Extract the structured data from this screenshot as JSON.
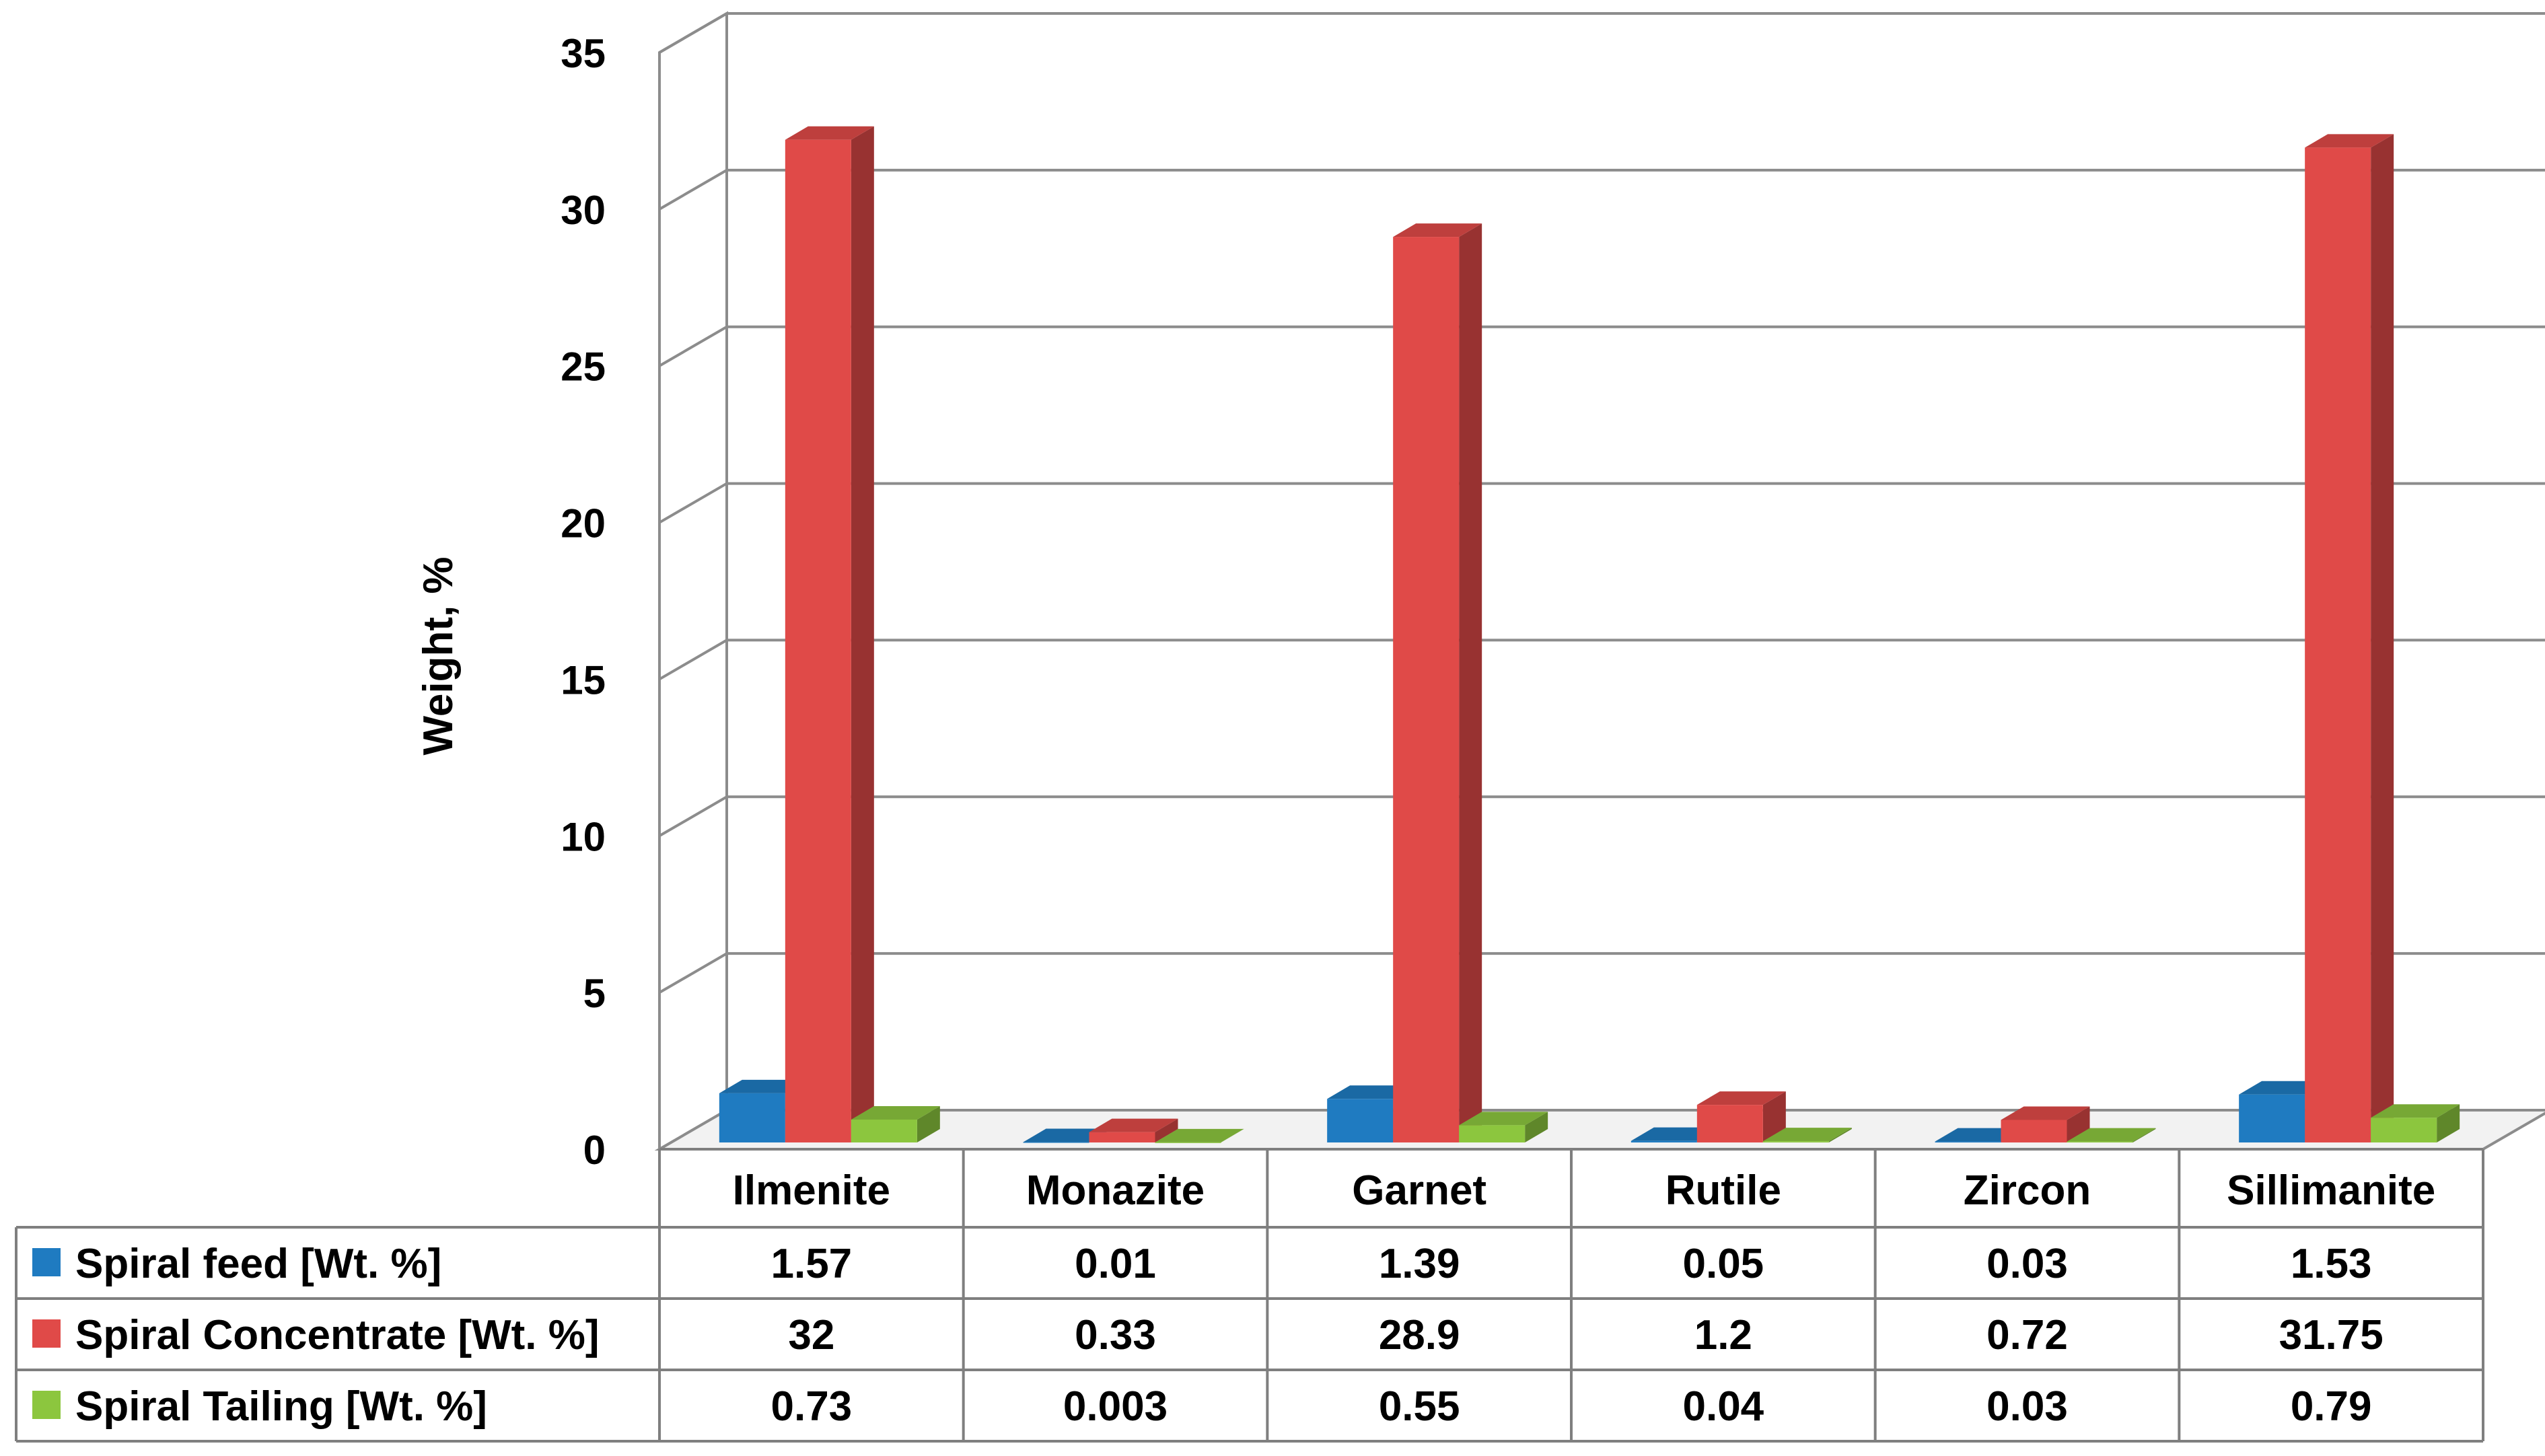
{
  "chart_data": {
    "type": "bar",
    "title": "",
    "xlabel": "",
    "ylabel": "Weight, %",
    "ylim": [
      0,
      35
    ],
    "yticks": [
      0,
      5,
      10,
      15,
      20,
      25,
      30,
      35
    ],
    "grid": true,
    "legend": "data-table-left",
    "categories": [
      "Ilmenite",
      "Monazite",
      "Garnet",
      "Rutile",
      "Zircon",
      "Sillimanite"
    ],
    "series": [
      {
        "name": "Spiral  feed [Wt. %]",
        "color": "#1f7bc1",
        "values": [
          1.57,
          0.01,
          1.39,
          0.05,
          0.03,
          1.53
        ],
        "labels": [
          "1.57",
          "0.01",
          "1.39",
          "0.05",
          "0.03",
          "1.53"
        ]
      },
      {
        "name": "Spiral Concentrate [Wt. %]",
        "color": "#e04a48",
        "values": [
          32,
          0.33,
          28.9,
          1.2,
          0.72,
          31.75
        ],
        "labels": [
          "32",
          "0.33",
          "28.9",
          "1.2",
          "0.72",
          "31.75"
        ]
      },
      {
        "name": "Spiral Tailing [Wt. %]",
        "color": "#8cc63e",
        "values": [
          0.73,
          0.003,
          0.55,
          0.04,
          0.03,
          0.79
        ],
        "labels": [
          "0.73",
          "0.003",
          "0.55",
          "0.04",
          "0.03",
          "0.79"
        ]
      }
    ]
  }
}
